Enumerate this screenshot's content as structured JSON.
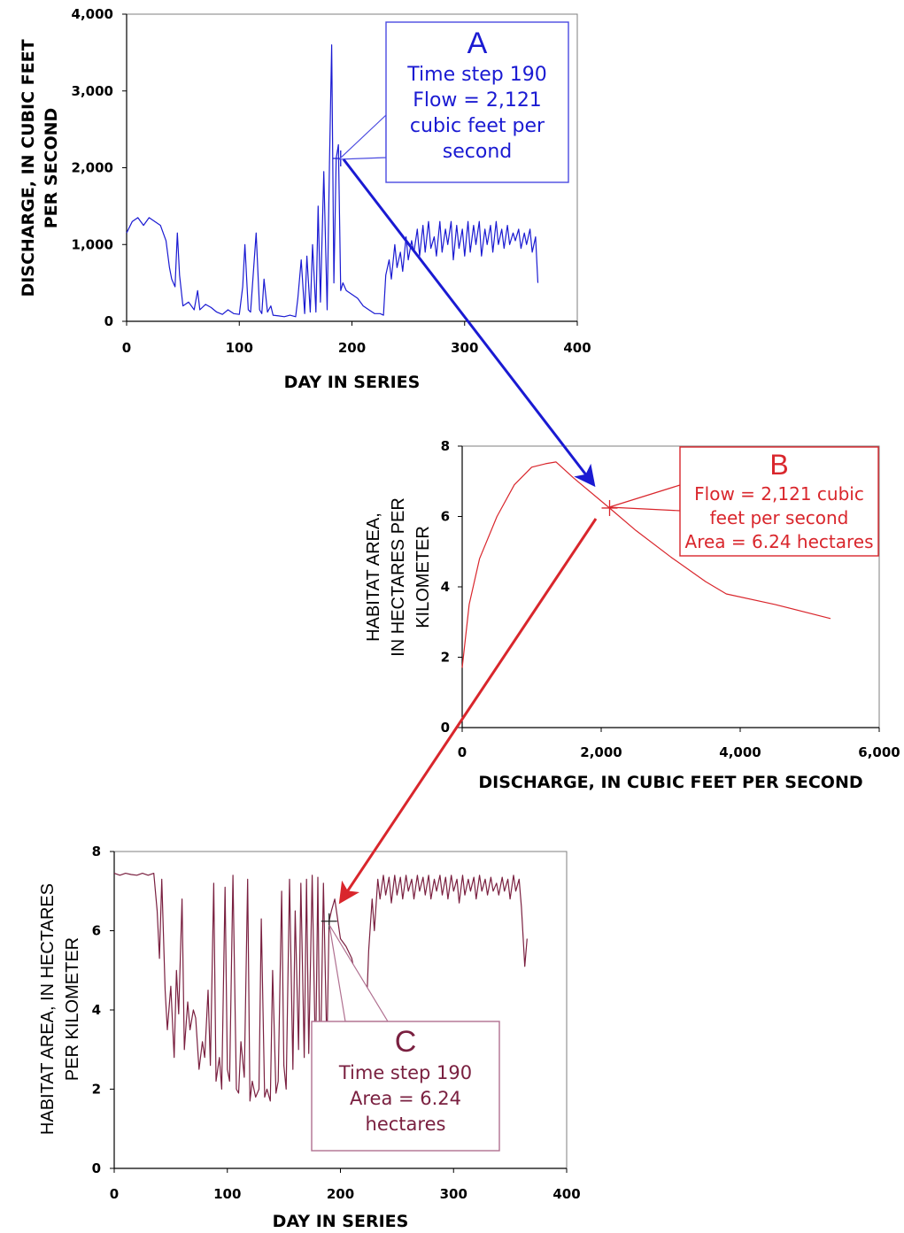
{
  "colors": {
    "blue": "#1a1ad2",
    "red": "#d9262c",
    "maroon": "#7a2040",
    "axis": "#7f7f7f",
    "callout_a": "#4a4ae0",
    "callout_b": "#d9262c",
    "callout_c": "#b07090"
  },
  "chart_data": [
    {
      "id": "A",
      "type": "line",
      "title": "",
      "xlabel": "DAY IN SERIES",
      "ylabel": "DISCHARGE, IN CUBIC FEET PER SECOND",
      "ylabel_lines": [
        "DISCHARGE, IN CUBIC FEET",
        "PER SECOND"
      ],
      "xlim": [
        0,
        400
      ],
      "ylim": [
        0,
        4000
      ],
      "x_ticks": [
        "0",
        "100",
        "200",
        "300",
        "400"
      ],
      "y_ticks": [
        "0",
        "1,000",
        "2,000",
        "3,000",
        "4,000"
      ],
      "series": [
        {
          "x": [
            0,
            5,
            10,
            15,
            20,
            25,
            30,
            35,
            38,
            40,
            43,
            45,
            47,
            50,
            55,
            60,
            63,
            65,
            70,
            75,
            80,
            85,
            90,
            95,
            100,
            103,
            105,
            108,
            110,
            115,
            118,
            120,
            122,
            125,
            128,
            130,
            135,
            140,
            145,
            150,
            152,
            155,
            158,
            160,
            163,
            165,
            168,
            170,
            172,
            175,
            178,
            180,
            182,
            184,
            186,
            188,
            190,
            192,
            195,
            200,
            205,
            210,
            215,
            220,
            225,
            228,
            230,
            233,
            235,
            238,
            240,
            243,
            245,
            248,
            250,
            253,
            255,
            258,
            260,
            263,
            265,
            268,
            270,
            273,
            275,
            278,
            280,
            283,
            285,
            288,
            290,
            293,
            295,
            298,
            300,
            303,
            305,
            308,
            310,
            313,
            315,
            318,
            320,
            323,
            325,
            328,
            330,
            333,
            335,
            338,
            340,
            343,
            345,
            348,
            350,
            353,
            355,
            358,
            360,
            363,
            365
          ],
          "y": [
            1150,
            1300,
            1350,
            1250,
            1350,
            1300,
            1250,
            1050,
            700,
            550,
            450,
            1150,
            600,
            200,
            250,
            150,
            400,
            150,
            220,
            180,
            120,
            90,
            150,
            100,
            90,
            450,
            1000,
            150,
            120,
            1150,
            150,
            100,
            550,
            120,
            200,
            80,
            70,
            60,
            80,
            60,
            300,
            800,
            100,
            850,
            120,
            1000,
            120,
            1500,
            250,
            1950,
            150,
            2050,
            3600,
            500,
            2121,
            2300,
            400,
            500,
            400,
            350,
            300,
            200,
            150,
            100,
            100,
            80,
            600,
            800,
            550,
            1000,
            700,
            900,
            650,
            1100,
            800,
            1050,
            900,
            1200,
            850,
            1250,
            900,
            1300,
            950,
            1100,
            850,
            1300,
            900,
            1200,
            1000,
            1300,
            800,
            1250,
            950,
            1200,
            850,
            1300,
            900,
            1250,
            1000,
            1300,
            850,
            1200,
            1000,
            1250,
            900,
            1300,
            1000,
            1200,
            950,
            1250,
            1000,
            1150,
            1050,
            1200,
            950,
            1150,
            1000,
            1200,
            900,
            1100,
            500
          ]
        }
      ],
      "marker": {
        "x": 190,
        "y": 2121
      },
      "callout": {
        "letter": "A",
        "lines": [
          "Time step 190",
          "Flow = 2,121",
          "cubic feet per",
          "second"
        ]
      }
    },
    {
      "id": "B",
      "type": "line",
      "title": "",
      "xlabel": "DISCHARGE, IN CUBIC FEET PER SECOND",
      "ylabel": "HABITAT AREA, IN HECTARES PER KILOMETER",
      "ylabel_lines": [
        "HABITAT AREA,",
        "IN HECTARES PER",
        "KILOMETER"
      ],
      "xlim": [
        0,
        6000
      ],
      "ylim": [
        0,
        8
      ],
      "x_ticks": [
        "0",
        "2,000",
        "4,000",
        "6,000"
      ],
      "y_ticks": [
        "0",
        "2",
        "4",
        "6",
        "8"
      ],
      "series": [
        {
          "x": [
            0,
            100,
            250,
            500,
            750,
            1000,
            1200,
            1350,
            1600,
            2121,
            2500,
            3000,
            3500,
            3800,
            4500,
            5300
          ],
          "y": [
            1.7,
            3.5,
            4.8,
            6.0,
            6.9,
            7.4,
            7.5,
            7.55,
            7.1,
            6.24,
            5.6,
            4.85,
            4.15,
            3.8,
            3.5,
            3.1
          ]
        }
      ],
      "marker": {
        "x": 2121,
        "y": 6.24
      },
      "callout": {
        "letter": "B",
        "lines": [
          "Flow = 2,121 cubic",
          "feet per second",
          "Area = 6.24 hectares"
        ]
      }
    },
    {
      "id": "C",
      "type": "line",
      "title": "",
      "xlabel": "DAY IN SERIES",
      "ylabel": "HABITAT AREA, IN HECTARES PER KILOMETER",
      "ylabel_lines": [
        "HABITAT AREA, IN HECTARES",
        "PER KILOMETER"
      ],
      "xlim": [
        0,
        400
      ],
      "ylim": [
        0,
        8
      ],
      "x_ticks": [
        "0",
        "100",
        "200",
        "300",
        "400"
      ],
      "y_ticks": [
        "0",
        "2",
        "4",
        "6",
        "8"
      ],
      "series": [
        {
          "x": [
            0,
            5,
            10,
            15,
            20,
            25,
            30,
            35,
            38,
            40,
            42,
            45,
            47,
            50,
            53,
            55,
            57,
            60,
            62,
            65,
            67,
            70,
            72,
            75,
            78,
            80,
            83,
            85,
            88,
            90,
            93,
            95,
            98,
            100,
            102,
            105,
            108,
            110,
            112,
            115,
            118,
            120,
            122,
            125,
            128,
            130,
            133,
            135,
            138,
            140,
            143,
            145,
            148,
            150,
            152,
            155,
            158,
            160,
            163,
            165,
            168,
            170,
            172,
            175,
            178,
            180,
            182,
            185,
            188,
            190,
            192,
            195,
            198,
            200,
            205,
            210,
            215,
            220,
            223,
            225,
            228,
            230,
            233,
            235,
            238,
            240,
            243,
            245,
            248,
            250,
            253,
            255,
            258,
            260,
            263,
            265,
            268,
            270,
            273,
            275,
            278,
            280,
            283,
            285,
            288,
            290,
            293,
            295,
            298,
            300,
            303,
            305,
            308,
            310,
            313,
            315,
            318,
            320,
            323,
            325,
            328,
            330,
            333,
            335,
            338,
            340,
            343,
            345,
            348,
            350,
            353,
            355,
            358,
            360,
            363,
            365
          ],
          "y": [
            7.45,
            7.4,
            7.45,
            7.42,
            7.4,
            7.45,
            7.4,
            7.45,
            6.5,
            5.3,
            7.3,
            4.5,
            3.5,
            4.6,
            2.8,
            5.0,
            3.9,
            6.8,
            3.0,
            4.2,
            3.5,
            4.0,
            3.8,
            2.5,
            3.2,
            2.8,
            4.5,
            2.6,
            7.2,
            2.2,
            2.8,
            2.0,
            7.1,
            2.5,
            2.2,
            7.4,
            2.0,
            1.9,
            3.2,
            2.3,
            7.3,
            1.7,
            2.2,
            1.8,
            2.0,
            6.3,
            1.8,
            2.0,
            1.7,
            5.0,
            1.9,
            2.2,
            7.0,
            2.6,
            2.0,
            7.3,
            2.5,
            6.5,
            3.0,
            7.2,
            2.8,
            7.3,
            2.9,
            7.4,
            2.6,
            7.35,
            2.0,
            7.2,
            3.0,
            6.24,
            6.5,
            6.8,
            6.2,
            5.8,
            5.6,
            5.3,
            4.6,
            4.2,
            4.0,
            5.5,
            6.8,
            6.0,
            7.3,
            6.8,
            7.4,
            6.9,
            7.35,
            6.7,
            7.4,
            6.9,
            7.35,
            6.8,
            7.4,
            7.0,
            7.3,
            6.8,
            7.4,
            7.0,
            7.35,
            6.9,
            7.4,
            6.8,
            7.3,
            7.0,
            7.4,
            6.9,
            7.35,
            6.8,
            7.4,
            7.0,
            7.3,
            6.7,
            7.4,
            6.9,
            7.3,
            7.0,
            7.35,
            6.8,
            7.4,
            7.0,
            7.3,
            6.9,
            7.35,
            7.0,
            7.2,
            6.9,
            7.35,
            7.0,
            7.3,
            6.8,
            7.4,
            7.0,
            7.3,
            6.6,
            5.1,
            5.8
          ]
        }
      ],
      "marker": {
        "x": 190,
        "y": 6.24
      },
      "callout": {
        "letter": "C",
        "lines": [
          "Time step 190",
          "Area = 6.24",
          "hectares"
        ]
      }
    }
  ]
}
